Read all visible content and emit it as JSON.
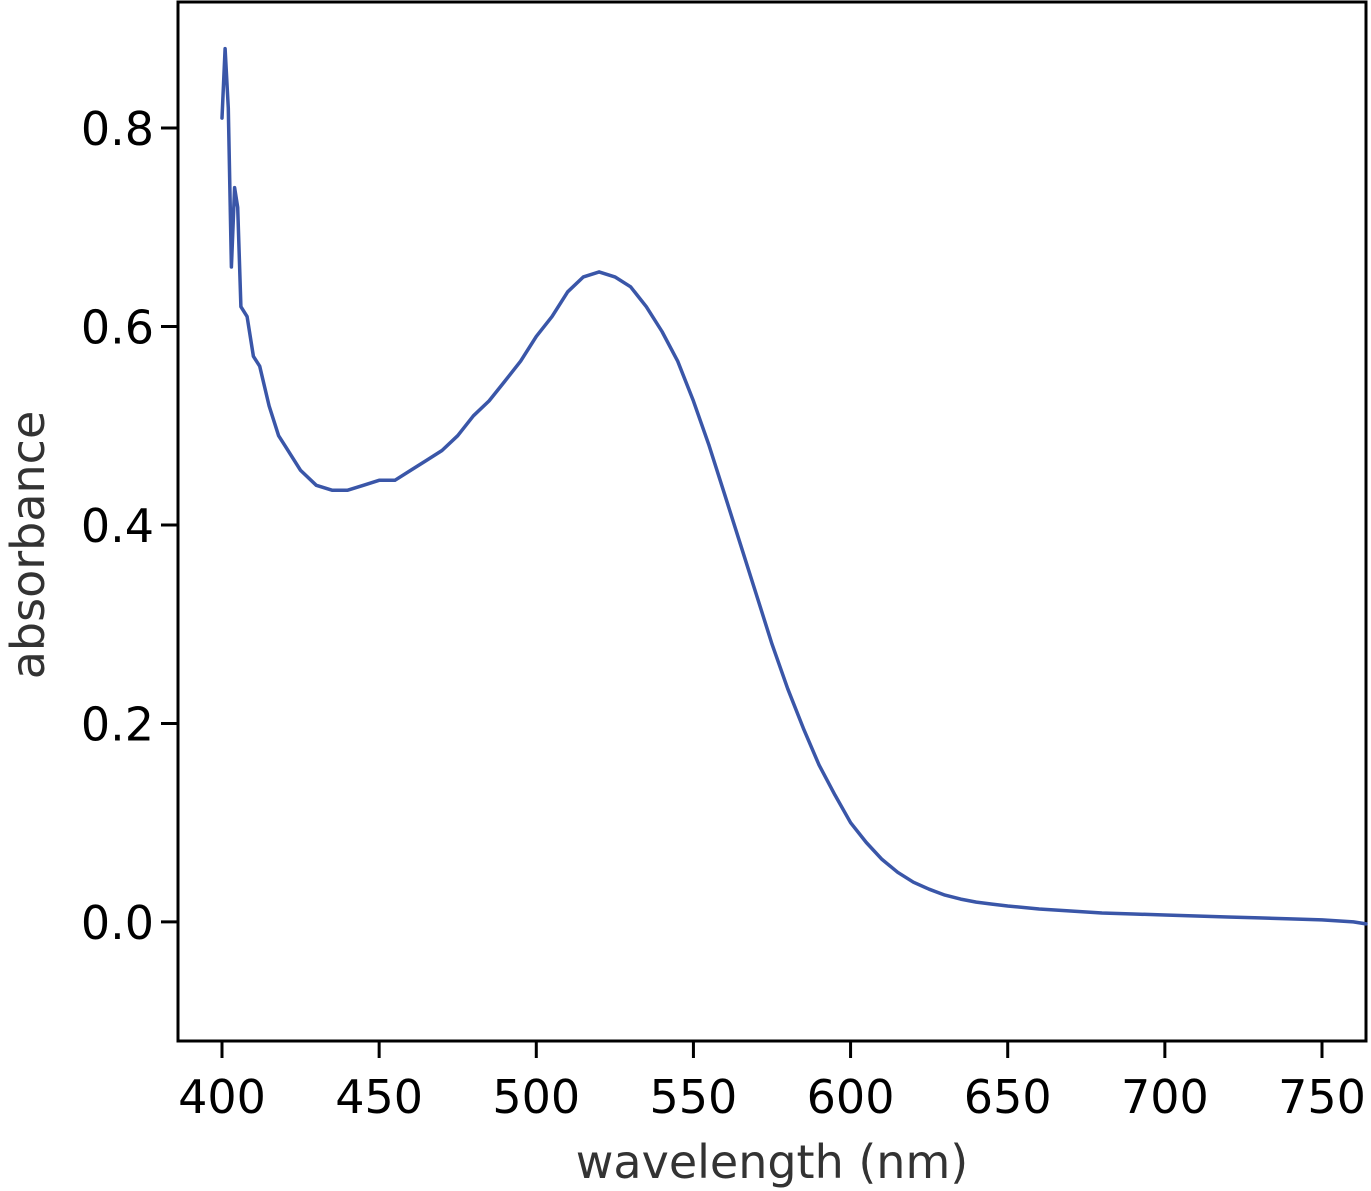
{
  "chart_data": {
    "type": "line",
    "title": "",
    "xlabel": "wavelength (nm)",
    "ylabel": "absorbance",
    "xlim": [
      386,
      764
    ],
    "ylim": [
      -0.12,
      0.927
    ],
    "x_ticks": [
      400,
      450,
      500,
      550,
      600,
      650,
      700,
      750
    ],
    "x_tick_labels": [
      "400",
      "450",
      "500",
      "550",
      "600",
      "650",
      "700",
      "750"
    ],
    "y_ticks": [
      0.0,
      0.2,
      0.4,
      0.6,
      0.8
    ],
    "y_tick_labels": [
      "0.0",
      "0.2",
      "0.4",
      "0.6",
      "0.8"
    ],
    "grid": false,
    "legend": false,
    "line_color": "#3a56a8",
    "series": [
      {
        "x": [
          400,
          401,
          402,
          403,
          404,
          405,
          406,
          408,
          410,
          412,
          415,
          418,
          420,
          425,
          430,
          435,
          440,
          445,
          450,
          455,
          460,
          465,
          470,
          475,
          480,
          485,
          490,
          495,
          500,
          505,
          510,
          515,
          520,
          525,
          530,
          535,
          540,
          545,
          550,
          555,
          560,
          565,
          570,
          575,
          580,
          585,
          590,
          595,
          600,
          605,
          610,
          615,
          620,
          625,
          630,
          635,
          640,
          645,
          650,
          660,
          670,
          680,
          690,
          700,
          710,
          720,
          730,
          740,
          750,
          760,
          764
        ],
        "y": [
          0.81,
          0.88,
          0.82,
          0.66,
          0.74,
          0.72,
          0.62,
          0.61,
          0.57,
          0.56,
          0.52,
          0.49,
          0.48,
          0.455,
          0.44,
          0.435,
          0.435,
          0.44,
          0.445,
          0.445,
          0.455,
          0.465,
          0.475,
          0.49,
          0.51,
          0.525,
          0.545,
          0.565,
          0.59,
          0.61,
          0.635,
          0.65,
          0.655,
          0.65,
          0.64,
          0.62,
          0.595,
          0.565,
          0.525,
          0.48,
          0.43,
          0.38,
          0.33,
          0.28,
          0.235,
          0.195,
          0.158,
          0.128,
          0.1,
          0.08,
          0.063,
          0.05,
          0.04,
          0.033,
          0.027,
          0.023,
          0.02,
          0.018,
          0.016,
          0.013,
          0.011,
          0.009,
          0.008,
          0.007,
          0.006,
          0.005,
          0.004,
          0.003,
          0.002,
          0.0,
          -0.002
        ]
      }
    ]
  }
}
